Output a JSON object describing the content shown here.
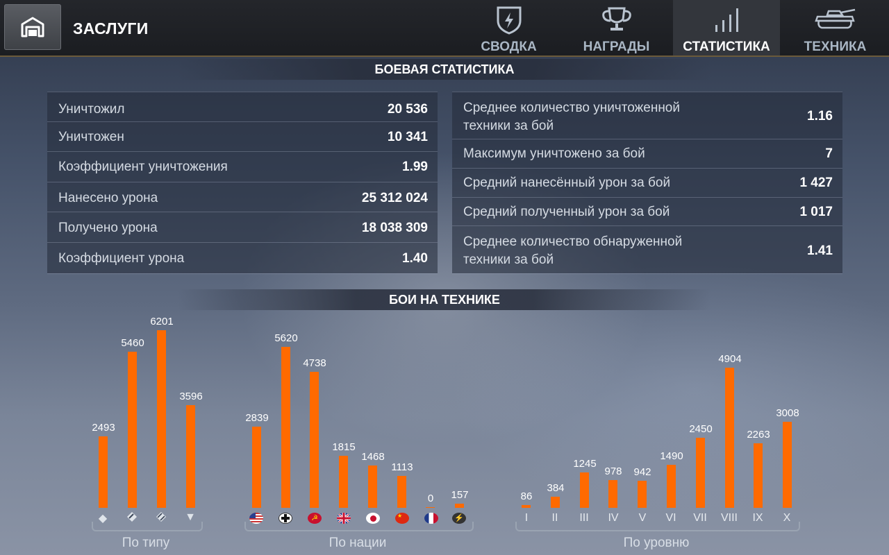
{
  "header": {
    "title": "ЗАСЛУГИ",
    "tabs": [
      {
        "label": "СВОДКА",
        "icon": "shield-icon",
        "active": false
      },
      {
        "label": "НАГРАДЫ",
        "icon": "trophy-icon",
        "active": false
      },
      {
        "label": "СТАТИСТИКА",
        "icon": "stats-bars-icon",
        "active": true
      },
      {
        "label": "ТЕХНИКА",
        "icon": "tank-icon",
        "active": false
      }
    ]
  },
  "battle_stats": {
    "title": "БОЕВАЯ СТАТИСТИКА",
    "left": [
      {
        "label": "Уничтожил",
        "value": "20 536"
      },
      {
        "label": "Уничтожен",
        "value": "10 341"
      },
      {
        "label": "Коэффициент уничтожения",
        "value": "1.99"
      },
      {
        "label": "Нанесено урона",
        "value": "25 312 024"
      },
      {
        "label": "Получено урона",
        "value": "18 038 309"
      },
      {
        "label": "Коэффициент урона",
        "value": "1.40"
      }
    ],
    "right": [
      {
        "label": "Среднее количество уничтоженной",
        "label2": "техники за бой",
        "value": "1.16"
      },
      {
        "label": "Максимум уничтожено за бой",
        "value": "7"
      },
      {
        "label": "Средний нанесённый урон за бой",
        "value": "1 427"
      },
      {
        "label": "Средний полученный урон за бой",
        "value": "1 017"
      },
      {
        "label": "Среднее количество обнаруженной",
        "label2": "техники за бой",
        "value": "1.41"
      }
    ]
  },
  "vehicle_battles": {
    "title": "БОИ НА ТЕХНИКЕ",
    "groups": {
      "by_type": "По типу",
      "by_nation": "По нации",
      "by_tier": "По уровню"
    }
  },
  "chart_data": [
    {
      "type": "bar",
      "title": "",
      "xlabel": "По типу",
      "categories": [
        "light-tank-icon",
        "medium-tank-icon",
        "heavy-tank-icon",
        "td-icon"
      ],
      "values": [
        2493,
        5460,
        6201,
        3596
      ]
    },
    {
      "type": "bar",
      "title": "",
      "xlabel": "По нации",
      "categories": [
        "usa-flag",
        "germany-flag",
        "ussr-flag",
        "uk-flag",
        "japan-flag",
        "china-flag",
        "france-flag",
        "other-flag"
      ],
      "values": [
        2839,
        5620,
        4738,
        1815,
        1468,
        1113,
        0,
        157
      ]
    },
    {
      "type": "bar",
      "title": "",
      "xlabel": "По уровню",
      "categories": [
        "I",
        "II",
        "III",
        "IV",
        "V",
        "VI",
        "VII",
        "VIII",
        "IX",
        "X"
      ],
      "values": [
        86,
        384,
        1245,
        978,
        942,
        1490,
        2450,
        4904,
        2263,
        3008
      ]
    }
  ]
}
